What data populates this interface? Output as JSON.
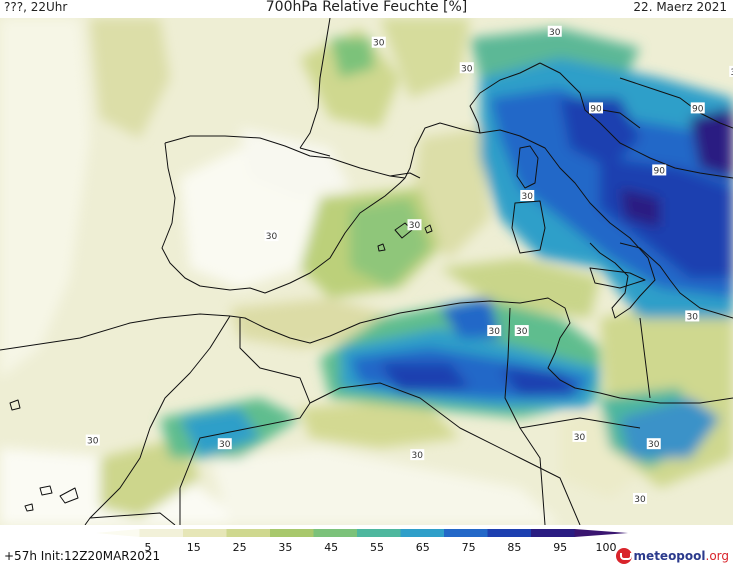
{
  "header": {
    "left": "???, 22Uhr",
    "title": "700hPa Relative Feuchte [%]",
    "right": "22. Maerz 2021"
  },
  "footer": {
    "init": "+57h Init:12Z20MAR2021",
    "logo_main": "meteopool",
    "logo_suffix": ".org"
  },
  "legend": {
    "ticks": [
      "5",
      "15",
      "25",
      "35",
      "45",
      "55",
      "65",
      "75",
      "85",
      "95",
      "100"
    ],
    "colors": [
      "#fbfbf0",
      "#f2f1d9",
      "#e6e6b7",
      "#cfd88f",
      "#a8c86c",
      "#7cc27a",
      "#4eb79e",
      "#2f9fc9",
      "#2368c8",
      "#1d3fb0",
      "#2a1d82",
      "#3a1570"
    ]
  },
  "map": {
    "contour_labels": [
      {
        "text": "30",
        "lon": 7.0,
        "lat": 43.5
      },
      {
        "text": "30",
        "lon": 10.2,
        "lat": 44.5
      },
      {
        "text": "30",
        "lon": 12.5,
        "lat": 46.5
      },
      {
        "text": "30",
        "lon": 1.6,
        "lat": 45.3
      },
      {
        "text": "30",
        "lon": 3.8,
        "lat": 44.2
      },
      {
        "text": "90",
        "lon": 11.7,
        "lat": 42.4
      },
      {
        "text": "90",
        "lon": 15.4,
        "lat": 42.4
      },
      {
        "text": "90",
        "lon": 18.4,
        "lat": 42.4
      },
      {
        "text": "30",
        "lon": 16.8,
        "lat": 43.4
      },
      {
        "text": "90",
        "lon": 14.0,
        "lat": 40.7
      },
      {
        "text": "30",
        "lon": 9.2,
        "lat": 40.0
      },
      {
        "text": "30",
        "lon": 5.1,
        "lat": 39.2
      },
      {
        "text": "30",
        "lon": -0.1,
        "lat": 38.9
      },
      {
        "text": "30",
        "lon": 8.0,
        "lat": 36.3
      },
      {
        "text": "30",
        "lon": 9.0,
        "lat": 36.3
      },
      {
        "text": "30",
        "lon": 15.2,
        "lat": 36.7
      },
      {
        "text": "30",
        "lon": 11.1,
        "lat": 33.4
      },
      {
        "text": "30",
        "lon": 5.2,
        "lat": 32.9
      },
      {
        "text": "30",
        "lon": -1.8,
        "lat": 33.2
      },
      {
        "text": "30",
        "lon": -6.6,
        "lat": 33.3
      },
      {
        "text": "30",
        "lon": 13.8,
        "lat": 33.2
      },
      {
        "text": "30",
        "lon": 13.3,
        "lat": 31.7
      }
    ]
  }
}
